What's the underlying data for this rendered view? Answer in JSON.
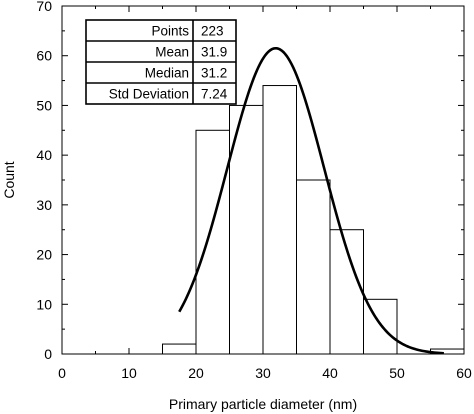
{
  "chart_data": {
    "type": "bar",
    "title": "",
    "xlabel": "Primary particle diameter (nm)",
    "ylabel": "Count",
    "xlim": [
      0,
      60
    ],
    "ylim": [
      0,
      70
    ],
    "xticks": [
      0,
      10,
      20,
      30,
      40,
      50,
      60
    ],
    "yticks": [
      0,
      10,
      20,
      30,
      40,
      50,
      60,
      70
    ],
    "grid": false,
    "bins": [
      {
        "start": 15,
        "end": 20,
        "count": 2
      },
      {
        "start": 20,
        "end": 25,
        "count": 45
      },
      {
        "start": 25,
        "end": 30,
        "count": 50
      },
      {
        "start": 30,
        "end": 35,
        "count": 54
      },
      {
        "start": 35,
        "end": 40,
        "count": 35
      },
      {
        "start": 40,
        "end": 45,
        "count": 25
      },
      {
        "start": 45,
        "end": 50,
        "count": 11
      },
      {
        "start": 50,
        "end": 55,
        "count": 0
      },
      {
        "start": 55,
        "end": 60,
        "count": 1
      }
    ],
    "fit_curve": {
      "type": "gaussian",
      "mean": 31.9,
      "std": 7.24,
      "peak": 61.5,
      "x_range": [
        17.5,
        57
      ]
    },
    "stats_table": {
      "placement": "top-left",
      "rows": [
        {
          "label": "Points",
          "value": "223"
        },
        {
          "label": "Mean",
          "value": "31.9"
        },
        {
          "label": "Median",
          "value": "31.2"
        },
        {
          "label": "Std Deviation",
          "value": "7.24"
        }
      ]
    }
  }
}
